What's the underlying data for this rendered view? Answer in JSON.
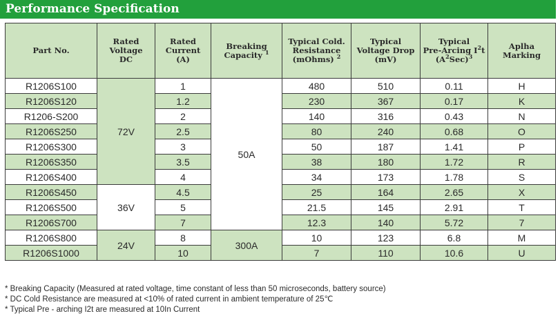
{
  "title": "Performance Specification",
  "headers": {
    "part": "Part No.",
    "voltage": [
      "Rated",
      "Voltage",
      "DC"
    ],
    "current": [
      "Rated",
      "Current",
      "(A)"
    ],
    "breaking": [
      "Breaking",
      "Capacity"
    ],
    "breaking_sup": "1",
    "resistance": [
      "Typical Cold.",
      "Resistance",
      "(mOhms)"
    ],
    "resistance_sup": "2",
    "drop": [
      "Typical",
      "Voltage Drop",
      "(mV)"
    ],
    "i2t": [
      "Typical",
      "Pre-Arcing I",
      "t",
      "(A",
      "Sec)"
    ],
    "i2t_sup": "2",
    "i2t_sup2": "2",
    "i2t_sup3": "3",
    "marking": [
      "Aplha",
      "Marking"
    ]
  },
  "rows": [
    {
      "part": "R1206S100",
      "current": "1",
      "resistance": "480",
      "drop": "510",
      "i2t": "0.11",
      "marking": "H"
    },
    {
      "part": "R1206S120",
      "current": "1.2",
      "resistance": "230",
      "drop": "367",
      "i2t": "0.17",
      "marking": "K"
    },
    {
      "part": "R1206-S200",
      "current": "2",
      "resistance": "140",
      "drop": "316",
      "i2t": "0.43",
      "marking": "N"
    },
    {
      "part": "R1206S250",
      "current": "2.5",
      "resistance": "80",
      "drop": "240",
      "i2t": "0.68",
      "marking": "O"
    },
    {
      "part": "R1206S300",
      "current": "3",
      "resistance": "50",
      "drop": "187",
      "i2t": "1.41",
      "marking": "P"
    },
    {
      "part": "R1206S350",
      "current": "3.5",
      "resistance": "38",
      "drop": "180",
      "i2t": "1.72",
      "marking": "R"
    },
    {
      "part": "R1206S400",
      "current": "4",
      "resistance": "34",
      "drop": "173",
      "i2t": "1.78",
      "marking": "S"
    },
    {
      "part": "R1206S450",
      "current": "4.5",
      "resistance": "25",
      "drop": "164",
      "i2t": "2.65",
      "marking": "X"
    },
    {
      "part": "R1206S500",
      "current": "5",
      "resistance": "21.5",
      "drop": "145",
      "i2t": "2.91",
      "marking": "T"
    },
    {
      "part": "R1206S700",
      "current": "7",
      "resistance": "12.3",
      "drop": "140",
      "i2t": "5.72",
      "marking": "7"
    },
    {
      "part": "R1206S800",
      "current": "8",
      "resistance": "10",
      "drop": "123",
      "i2t": "6.8",
      "marking": "M"
    },
    {
      "part": "R1206S1000",
      "current": "10",
      "resistance": "7",
      "drop": "110",
      "i2t": "10.6",
      "marking": "U"
    }
  ],
  "voltage_groups": [
    "72V",
    "36V",
    "24V"
  ],
  "breaking_groups": [
    "50A",
    "300A"
  ],
  "notes": [
    "* Breaking Capacity (Measured at rated voltage, time constant of less than 50 microseconds, battery source)",
    "* DC Cold Resistance are measured at <10% of rated current in ambient temperature of 25℃",
    "* Typical Pre - arching I2t are measured at 10In Current"
  ]
}
